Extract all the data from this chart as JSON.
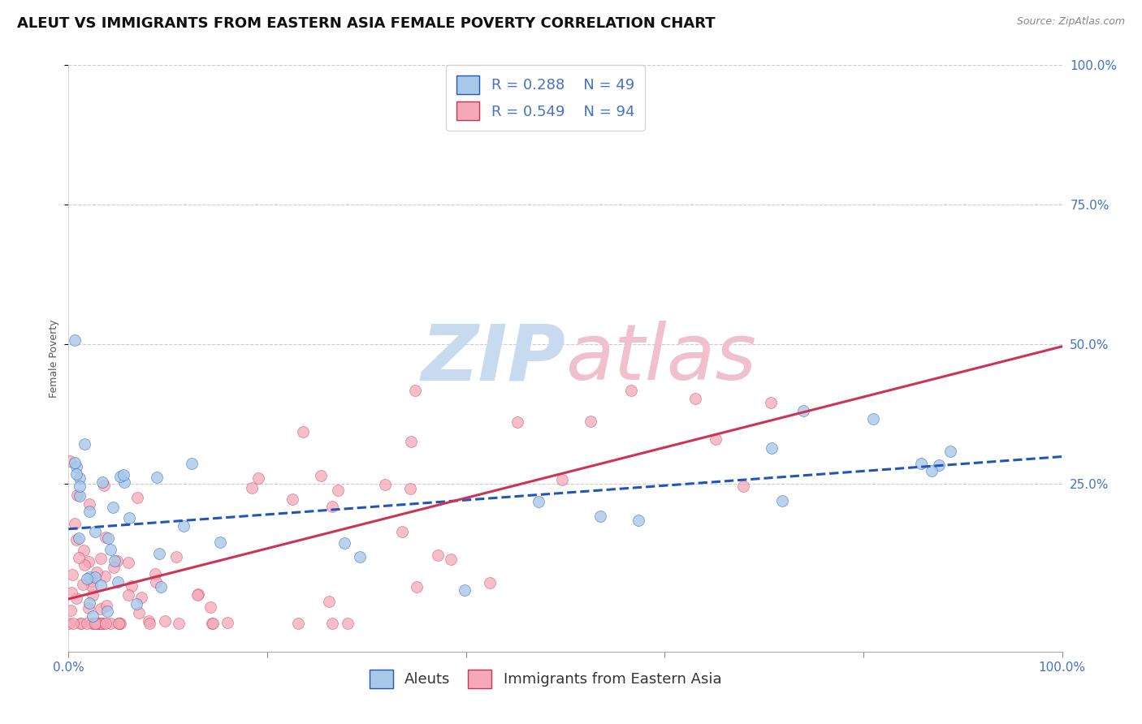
{
  "title": "ALEUT VS IMMIGRANTS FROM EASTERN ASIA FEMALE POVERTY CORRELATION CHART",
  "source_text": "Source: ZipAtlas.com",
  "ylabel": "Female Poverty",
  "y_tick_labels": [
    "25.0%",
    "50.0%",
    "75.0%",
    "100.0%"
  ],
  "y_tick_values": [
    0.25,
    0.5,
    0.75,
    1.0
  ],
  "x_tick_labels": [
    "0.0%",
    "100.0%"
  ],
  "x_tick_values": [
    0.0,
    1.0
  ],
  "legend_label_1": "Aleuts",
  "legend_label_2": "Immigrants from Eastern Asia",
  "R1": 0.288,
  "N1": 49,
  "R2": 0.549,
  "N2": 94,
  "color1": "#a8c8e8",
  "color2": "#f4a8b8",
  "trendline1_color": "#2255bb",
  "trendline2_color": "#cc3355",
  "background_color": "#ffffff",
  "watermark_zip_color": "#c8daf0",
  "watermark_atlas_color": "#f0c0cc",
  "title_fontsize": 13,
  "axis_label_fontsize": 9,
  "tick_fontsize": 11,
  "legend_fontsize": 13
}
